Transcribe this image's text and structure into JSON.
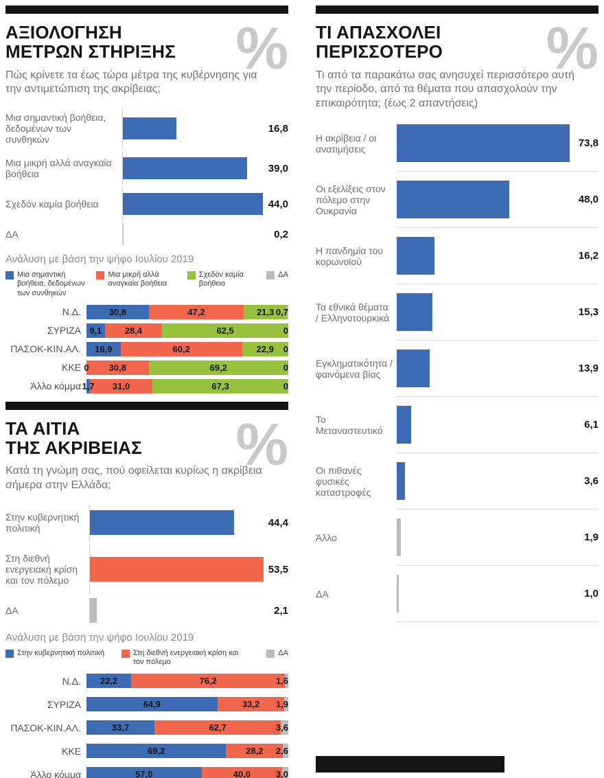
{
  "palette": {
    "blue": "#3d6cb5",
    "red": "#f1664c",
    "green": "#96c23d",
    "gray": "#bcbcbc",
    "black": "#151515"
  },
  "decor": {
    "percent": "%"
  },
  "sections": {
    "support": {
      "title_line1": "ΑΞΙΟΛΟΓΗΣΗ",
      "title_line2": "ΜΕΤΡΩΝ ΣΤΗΡΙΞΗΣ",
      "subtitle": "Πώς κρίνετε τα έως τώρα μέτρα της κυβέρνησης για την αντιμετώπιση της ακρίβειας;",
      "analysis_label": "Ανάλυση με βάση την ψήφο Ιουλίου 2019"
    },
    "causes": {
      "title_line1": "ΤΑ ΑΙΤΙΑ",
      "title_line2": "ΤΗΣ ΑΚΡΙΒΕΙΑΣ",
      "subtitle": "Κατά τη γνώμη σας, πού οφείλεται κυρίως η ακρίβεια σήμερα στην Ελλάδα;",
      "analysis_label": "Ανάλυση με βάση την ψήφο Ιουλίου 2019"
    },
    "concerns": {
      "title_line1": "ΤΙ ΑΠΑΣΧΟΛΕΙ",
      "title_line2": "ΠΕΡΙΣΣΟΤΕΡΟ",
      "subtitle": "Τι από τα παρακάτω σας ανησυχεί περισσότερο αυτή την περίοδο, από τα θέματα που απασχολούν την επικαιρότητα; (έως 2 απαντήσεις)"
    }
  },
  "chart_data": [
    {
      "id": "support-overall",
      "type": "bar",
      "orientation": "horizontal",
      "title": "ΑΞΙΟΛΟΓΗΣΗ ΜΕΤΡΩΝ ΣΤΗΡΙΞΗΣ",
      "categories": [
        "Μια σημαντική βοήθεια, δεδομένων των συνθηκών",
        "Μια μικρή αλλά αναγκαία βοήθεια",
        "Σχεδόν καμία βοήθεια",
        "ΔΑ"
      ],
      "values": [
        16.8,
        39.0,
        44.0,
        0.2
      ],
      "bar_colors": [
        "blue",
        "blue",
        "blue",
        "gray"
      ],
      "xmax": 52,
      "grid": false,
      "value_format": "greek-decimal-comma"
    },
    {
      "id": "support-by-2019-vote",
      "type": "stacked-bar",
      "orientation": "horizontal",
      "title": "Ανάλυση με βάση την ψήφο Ιουλίου 2019",
      "categories": [
        "Ν.Δ.",
        "ΣΥΡΙΖΑ",
        "ΠΑΣΟΚ-ΚΙΝ.ΑΛ.",
        "ΚΚΕ",
        "Άλλο κόμμα"
      ],
      "xmax": 100,
      "legend_position": "top",
      "series": [
        {
          "name": "Μια σημαντική βοήθεια, δεδομένων των συνθηκών",
          "color": "blue",
          "values": [
            30.8,
            9.1,
            16.9,
            0,
            1.7
          ]
        },
        {
          "name": "Μια μικρή αλλά αναγκαία βοήθεια",
          "color": "red",
          "values": [
            47.2,
            28.4,
            60.2,
            30.8,
            31.0
          ]
        },
        {
          "name": "Σχεδόν καμία βοήθεια",
          "color": "green",
          "values": [
            21.3,
            62.5,
            22.9,
            69.2,
            67.3
          ]
        },
        {
          "name": "ΔΑ",
          "color": "gray",
          "values": [
            0.7,
            0,
            0,
            0,
            0
          ]
        }
      ]
    },
    {
      "id": "causes-overall",
      "type": "bar",
      "orientation": "horizontal",
      "title": "ΤΑ ΑΙΤΙΑ ΤΗΣ ΑΚΡΙΒΕΙΑΣ",
      "categories": [
        "Στην κυβερνητική πολιτική",
        "Στη διεθνή ενεργειακή κρίση και τον πόλεμο",
        "ΔΑ"
      ],
      "values": [
        44.4,
        53.5,
        2.1
      ],
      "bar_colors": [
        "blue",
        "red",
        "gray"
      ],
      "xmax": 61,
      "grid": false,
      "value_format": "greek-decimal-comma"
    },
    {
      "id": "causes-by-2019-vote",
      "type": "stacked-bar",
      "orientation": "horizontal",
      "title": "Ανάλυση με βάση την ψήφο Ιουλίου 2019",
      "categories": [
        "Ν.Δ.",
        "ΣΥΡΙΖΑ",
        "ΠΑΣΟΚ-ΚΙΝ.ΑΛ.",
        "ΚΚΕ",
        "Άλλο κόμμα"
      ],
      "xmax": 100,
      "legend_position": "top",
      "series": [
        {
          "name": "Στην κυβερνητική πολιτική",
          "color": "blue",
          "values": [
            22.2,
            64.9,
            33.7,
            69.2,
            57.0
          ]
        },
        {
          "name": "Στη διεθνή ενεργειακή κρίση και τον πόλεμο",
          "color": "red",
          "values": [
            76.2,
            33.2,
            62.7,
            28.2,
            40.0
          ]
        },
        {
          "name": "ΔΑ",
          "color": "gray",
          "values": [
            1.6,
            1.9,
            3.6,
            2.6,
            3.0
          ]
        }
      ]
    },
    {
      "id": "concerns",
      "type": "bar",
      "orientation": "horizontal",
      "title": "ΤΙ ΑΠΑΣΧΟΛΕΙ ΠΕΡΙΣΣΟΤΕΡΟ",
      "categories": [
        "Η ακρίβεια / οι ανατιμήσεις",
        "Οι εξελίξεις στον πόλεμο στην Ουκρανία",
        "Η πανδημία του κορωνοϊού",
        "Τα εθνικά θέματα / Ελληνοτουρκικά",
        "Εγκληματικότητα / φαινόμενα βίας",
        "Το Μεταναστευτικό",
        "Οι πιθανές φυσικές καταστροφές",
        "Άλλο",
        "ΔΑ"
      ],
      "values": [
        73.8,
        48.0,
        16.2,
        15.3,
        13.9,
        6.1,
        3.6,
        1.9,
        1.0
      ],
      "bar_colors": [
        "blue",
        "blue",
        "blue",
        "blue",
        "blue",
        "blue",
        "blue",
        "gray",
        "gray"
      ],
      "xmax": 86,
      "row_separators": true,
      "value_format": "greek-decimal-comma"
    }
  ]
}
